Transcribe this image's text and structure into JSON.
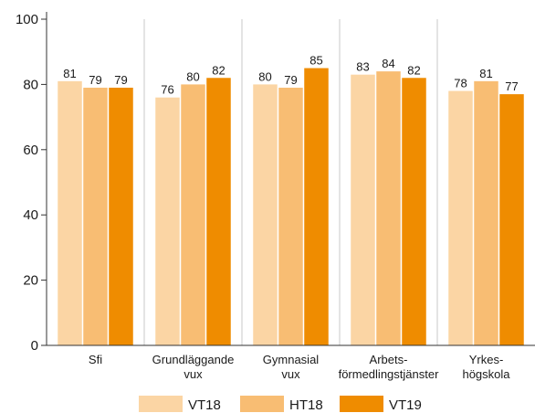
{
  "chart_data": {
    "type": "bar",
    "categories": [
      [
        "Sfi"
      ],
      [
        "Grundläggande",
        "vux"
      ],
      [
        "Gymnasial",
        "vux"
      ],
      [
        "Arbets-",
        "förmedlingstjänster"
      ],
      [
        "Yrkes-",
        "högskola"
      ]
    ],
    "series": [
      {
        "name": "VT18",
        "color": "#fbd5a4",
        "values": [
          81,
          76,
          80,
          83,
          78
        ]
      },
      {
        "name": "HT18",
        "color": "#f8bd73",
        "values": [
          79,
          80,
          79,
          84,
          81
        ]
      },
      {
        "name": "VT19",
        "color": "#ef8c00",
        "values": [
          79,
          82,
          85,
          82,
          77
        ]
      }
    ],
    "ylim": [
      0,
      100
    ],
    "yticks": [
      0,
      20,
      40,
      60,
      80,
      100
    ],
    "grid": "vertical category separators",
    "legend_position": "bottom",
    "title": "",
    "xlabel": "",
    "ylabel": ""
  }
}
